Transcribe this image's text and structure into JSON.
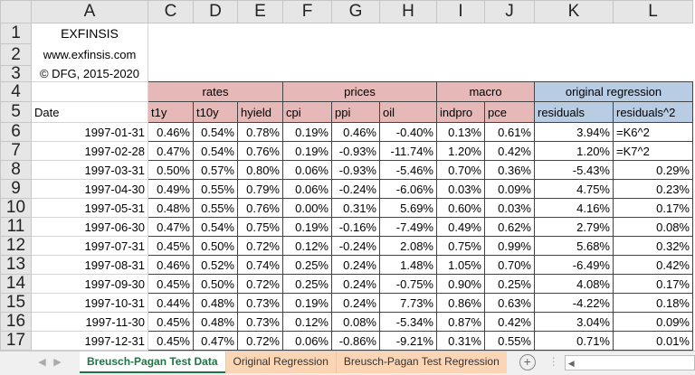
{
  "columns": [
    "A",
    "C",
    "D",
    "E",
    "F",
    "G",
    "H",
    "I",
    "J",
    "K",
    "L"
  ],
  "brand": {
    "name": "EXFINSIS",
    "url": "www.exfinsis.com",
    "copyright": "© DFG, 2015-2020"
  },
  "groups": [
    {
      "label": "rates"
    },
    {
      "label": "prices"
    },
    {
      "label": "macro"
    },
    {
      "label": "original regression"
    }
  ],
  "headers": [
    "Date",
    "t1y",
    "t10y",
    "hyield",
    "cpi",
    "ppi",
    "oil",
    "indpro",
    "pce",
    "residuals",
    "residuals^2"
  ],
  "row_numbers": [
    "1",
    "2",
    "3",
    "4",
    "5",
    "6",
    "7",
    "8",
    "9",
    "10",
    "11",
    "12",
    "13",
    "14",
    "15",
    "16",
    "17"
  ],
  "rows": [
    [
      "1997-01-31",
      "0.46%",
      "0.54%",
      "0.78%",
      "0.19%",
      "0.46%",
      "-0.40%",
      "0.13%",
      "0.61%",
      "3.94%",
      "=K6^2"
    ],
    [
      "1997-02-28",
      "0.47%",
      "0.54%",
      "0.76%",
      "0.19%",
      "-0.93%",
      "-11.74%",
      "1.20%",
      "0.42%",
      "1.20%",
      "=K7^2"
    ],
    [
      "1997-03-31",
      "0.50%",
      "0.57%",
      "0.80%",
      "0.06%",
      "-0.93%",
      "-5.46%",
      "0.70%",
      "0.36%",
      "-5.43%",
      "0.29%"
    ],
    [
      "1997-04-30",
      "0.49%",
      "0.55%",
      "0.79%",
      "0.06%",
      "-0.24%",
      "-6.06%",
      "0.03%",
      "0.09%",
      "4.75%",
      "0.23%"
    ],
    [
      "1997-05-31",
      "0.48%",
      "0.55%",
      "0.76%",
      "0.00%",
      "0.31%",
      "5.69%",
      "0.60%",
      "0.03%",
      "4.16%",
      "0.17%"
    ],
    [
      "1997-06-30",
      "0.47%",
      "0.54%",
      "0.75%",
      "0.19%",
      "-0.16%",
      "-7.49%",
      "0.49%",
      "0.62%",
      "2.79%",
      "0.08%"
    ],
    [
      "1997-07-31",
      "0.45%",
      "0.50%",
      "0.72%",
      "0.12%",
      "-0.24%",
      "2.08%",
      "0.75%",
      "0.99%",
      "5.68%",
      "0.32%"
    ],
    [
      "1997-08-31",
      "0.46%",
      "0.52%",
      "0.74%",
      "0.25%",
      "0.24%",
      "1.48%",
      "1.05%",
      "0.70%",
      "-6.49%",
      "0.42%"
    ],
    [
      "1997-09-30",
      "0.45%",
      "0.50%",
      "0.72%",
      "0.25%",
      "0.24%",
      "-0.75%",
      "0.90%",
      "0.25%",
      "4.08%",
      "0.17%"
    ],
    [
      "1997-10-31",
      "0.44%",
      "0.48%",
      "0.73%",
      "0.19%",
      "0.24%",
      "7.73%",
      "0.86%",
      "0.63%",
      "-4.22%",
      "0.18%"
    ],
    [
      "1997-11-30",
      "0.45%",
      "0.48%",
      "0.73%",
      "0.12%",
      "0.08%",
      "-5.34%",
      "0.87%",
      "0.42%",
      "3.04%",
      "0.09%"
    ],
    [
      "1997-12-31",
      "0.45%",
      "0.47%",
      "0.72%",
      "0.06%",
      "-0.86%",
      "-9.21%",
      "0.31%",
      "0.55%",
      "0.71%",
      "0.01%"
    ]
  ],
  "tabs": [
    {
      "label": "Breusch-Pagan Test Data",
      "active": true
    },
    {
      "label": "Original Regression"
    },
    {
      "label": "Breusch-Pagan Test Regression"
    }
  ],
  "colors": {
    "rates_prices_macro": "#e6b8b7",
    "original_regression": "#b8cce4",
    "active_tab_text": "#217346",
    "inactive_tab": "#fcd5b4",
    "brand": "#5b8fd6"
  }
}
